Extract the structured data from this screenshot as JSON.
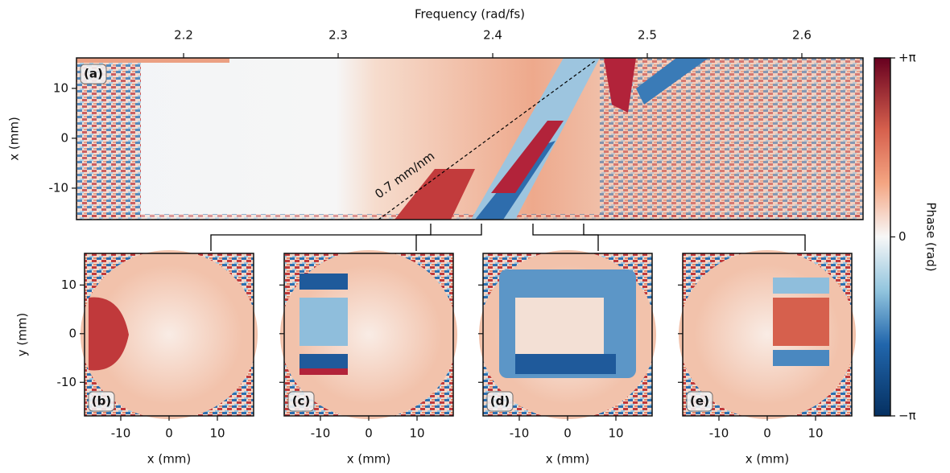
{
  "chart_data": [
    {
      "type": "heatmap",
      "panel_label": "(a)",
      "xlabel": "Frequency (rad/fs)",
      "ylabel": "x (mm)",
      "x_axis": "top",
      "xlim": [
        2.1307,
        2.6396
      ],
      "xticks": [
        2.2,
        2.3,
        2.4,
        2.5,
        2.6
      ],
      "ylim": [
        -16.3,
        16.1
      ],
      "yticks": [
        10,
        0,
        -10
      ],
      "annotation": "0.7 mm/nm"
    },
    {
      "type": "heatmap",
      "panel_label": "(b)",
      "xlabel": "x (mm)",
      "ylabel": "y (mm)",
      "x_axis": "bottom",
      "xlim": [
        -17.5,
        17.5
      ],
      "xticks": [
        -10,
        0,
        10
      ],
      "ylim": [
        -16.9,
        16.5
      ],
      "yticks": [
        10,
        0,
        -10
      ],
      "ytick_labels": true
    },
    {
      "type": "heatmap",
      "panel_label": "(c)",
      "xlabel": "x (mm)",
      "x_axis": "bottom",
      "xlim": [
        -17.5,
        17.5
      ],
      "xticks": [
        -10,
        0,
        10
      ],
      "ylim": [
        -16.9,
        16.5
      ],
      "yticks": [
        10,
        0,
        -10
      ],
      "ytick_labels": false
    },
    {
      "type": "heatmap",
      "panel_label": "(d)",
      "xlabel": "x (mm)",
      "x_axis": "bottom",
      "xlim": [
        -17.5,
        17.5
      ],
      "xticks": [
        -10,
        0,
        10
      ],
      "ylim": [
        -16.9,
        16.5
      ],
      "yticks": [
        10,
        0,
        -10
      ],
      "ytick_labels": false
    },
    {
      "type": "heatmap",
      "panel_label": "(e)",
      "xlabel": "x (mm)",
      "x_axis": "bottom",
      "xlim": [
        -17.5,
        17.5
      ],
      "xticks": [
        -10,
        0,
        10
      ],
      "ylim": [
        -16.9,
        16.5
      ],
      "yticks": [
        10,
        0,
        -10
      ],
      "ytick_labels": false
    },
    {
      "type": "colorbar",
      "label": "Phase (rad)",
      "ylim": [
        -3.1416,
        3.1416
      ],
      "yticks": [
        {
          "value": 3.1416,
          "label": "+π"
        },
        0,
        {
          "value": -3.1416,
          "label": "−π"
        }
      ]
    }
  ]
}
